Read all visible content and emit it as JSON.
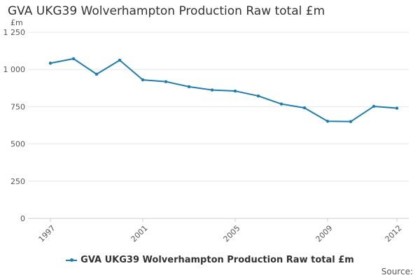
{
  "chart_data": {
    "type": "line",
    "title": "GVA UKG39 Wolverhampton Production Raw total £m",
    "unit_label": "£m",
    "source_label": "Source:",
    "ylim": [
      0,
      1250
    ],
    "yticks": [
      0,
      250,
      500,
      750,
      1000,
      1250
    ],
    "ytick_labels": [
      "0",
      "250",
      "500",
      "750",
      "1 000",
      "1 250"
    ],
    "xlim": [
      1997,
      2012
    ],
    "xticks": [
      1997,
      2001,
      2005,
      2009,
      2012
    ],
    "xtick_labels": [
      "1997",
      "2001",
      "2005",
      "2009",
      "2012"
    ],
    "grid": true,
    "legend_position": "bottom",
    "series": [
      {
        "name": "GVA UKG39 Wolverhampton Production Raw total £m",
        "color": "#1a7fb5",
        "x": [
          1997,
          1998,
          1999,
          2000,
          2001,
          2002,
          2003,
          2004,
          2005,
          2006,
          2007,
          2008,
          2009,
          2010,
          2011,
          2012
        ],
        "values": [
          1042,
          1072,
          968,
          1062,
          930,
          918,
          884,
          862,
          855,
          822,
          768,
          742,
          652,
          650,
          752,
          740
        ]
      }
    ]
  }
}
